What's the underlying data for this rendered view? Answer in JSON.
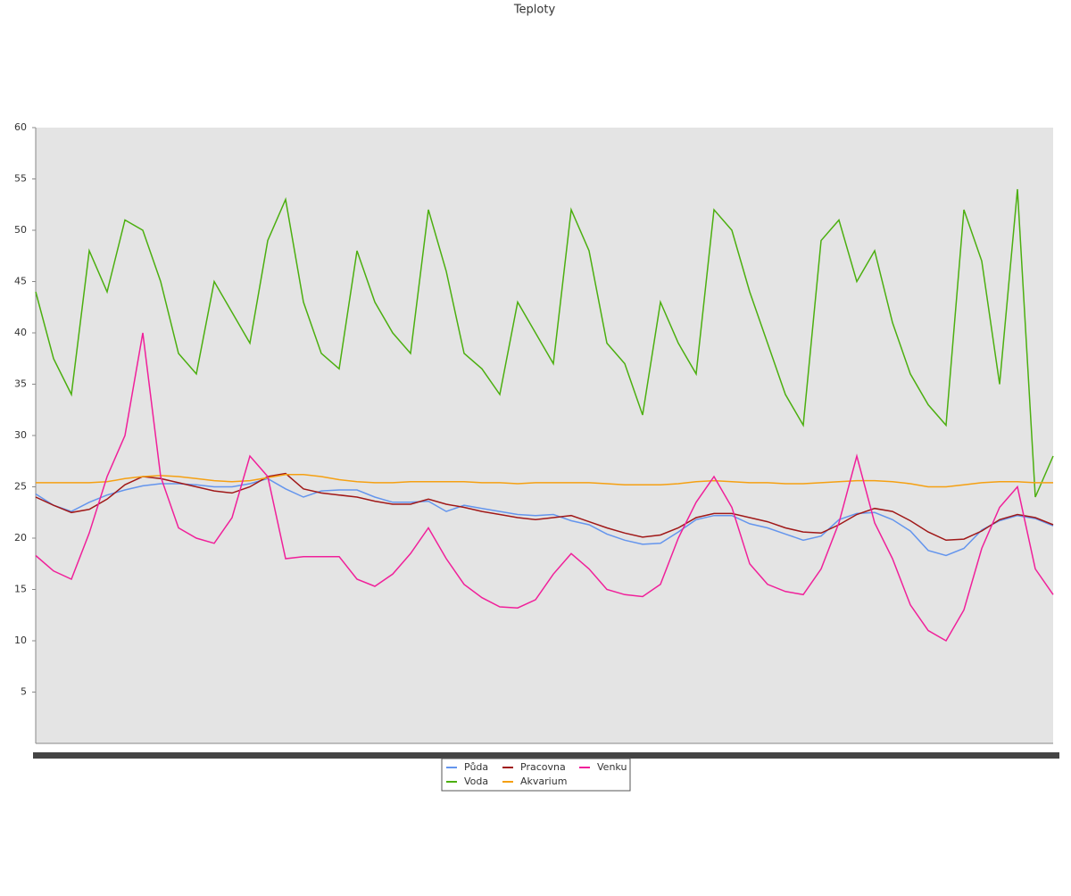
{
  "chart_data": {
    "type": "line",
    "title": "Teploty",
    "ylim": [
      0,
      60
    ],
    "yticks": [
      5,
      10,
      15,
      20,
      25,
      30,
      35,
      40,
      45,
      50,
      55,
      60
    ],
    "grid": false,
    "series": [
      {
        "name": "Půda",
        "color": "#6495ed",
        "values": [
          24.3,
          23.2,
          22.6,
          23.5,
          24.2,
          24.7,
          25.1,
          25.3,
          25.3,
          25.2,
          25.0,
          25.0,
          25.3,
          25.8,
          24.8,
          24.0,
          24.6,
          24.7,
          24.7,
          24.0,
          23.5,
          23.5,
          23.6,
          22.6,
          23.2,
          22.9,
          22.6,
          22.3,
          22.2,
          22.3,
          21.7,
          21.3,
          20.4,
          19.8,
          19.4,
          19.5,
          20.6,
          21.8,
          22.2,
          22.2,
          21.4,
          21.0,
          20.4,
          19.8,
          20.2,
          21.8,
          22.4,
          22.5,
          21.8,
          20.7,
          18.8,
          18.3,
          19.0,
          20.8,
          21.7,
          22.2,
          21.9,
          21.2
        ]
      },
      {
        "name": "Voda",
        "color": "#4caf10",
        "values": [
          44,
          37.5,
          34,
          48,
          44,
          51,
          50,
          45,
          38,
          36,
          45,
          42,
          39,
          49,
          53,
          43,
          38,
          36.5,
          48,
          43,
          40,
          38,
          52,
          46,
          38,
          36.5,
          34,
          43,
          40,
          37,
          52,
          48,
          39,
          37,
          32,
          43,
          39,
          36,
          52,
          50,
          44,
          39,
          34,
          31,
          49,
          51,
          45,
          48,
          41,
          36,
          33,
          31,
          52,
          47,
          35,
          54,
          24,
          28
        ]
      },
      {
        "name": "Pracovna",
        "color": "#a01818",
        "values": [
          24.0,
          23.2,
          22.5,
          22.8,
          23.8,
          25.2,
          26.0,
          25.8,
          25.4,
          25.0,
          24.6,
          24.4,
          25.0,
          26.0,
          26.3,
          24.8,
          24.4,
          24.2,
          24.0,
          23.6,
          23.3,
          23.3,
          23.8,
          23.3,
          23.0,
          22.6,
          22.3,
          22.0,
          21.8,
          22.0,
          22.2,
          21.6,
          21.0,
          20.5,
          20.1,
          20.3,
          21.0,
          22.0,
          22.4,
          22.4,
          22.0,
          21.6,
          21.0,
          20.6,
          20.5,
          21.3,
          22.3,
          22.9,
          22.6,
          21.7,
          20.6,
          19.8,
          19.9,
          20.7,
          21.8,
          22.3,
          22.0,
          21.3
        ]
      },
      {
        "name": "Akvarium",
        "color": "#f5a012",
        "values": [
          25.4,
          25.4,
          25.4,
          25.4,
          25.5,
          25.8,
          26.0,
          26.1,
          26.0,
          25.8,
          25.6,
          25.5,
          25.6,
          25.9,
          26.2,
          26.2,
          26.0,
          25.7,
          25.5,
          25.4,
          25.4,
          25.5,
          25.5,
          25.5,
          25.5,
          25.4,
          25.4,
          25.3,
          25.4,
          25.4,
          25.4,
          25.4,
          25.3,
          25.2,
          25.2,
          25.2,
          25.3,
          25.5,
          25.6,
          25.5,
          25.4,
          25.4,
          25.3,
          25.3,
          25.4,
          25.5,
          25.6,
          25.6,
          25.5,
          25.3,
          25.0,
          25.0,
          25.2,
          25.4,
          25.5,
          25.5,
          25.4,
          25.4
        ]
      },
      {
        "name": "Venku",
        "color": "#f0209a",
        "values": [
          18.3,
          16.8,
          16.0,
          20.5,
          26,
          30,
          40,
          26,
          21,
          20,
          19.5,
          22,
          28,
          26,
          18,
          18.2,
          18.2,
          18.2,
          16,
          15.3,
          16.5,
          18.5,
          21,
          18,
          15.5,
          14.2,
          13.3,
          13.2,
          14,
          16.5,
          18.5,
          17,
          15,
          14.5,
          14.3,
          15.5,
          20,
          23.5,
          26,
          23,
          17.5,
          15.5,
          14.8,
          14.5,
          17,
          21.5,
          28,
          21.5,
          18,
          13.5,
          11,
          10,
          13,
          19,
          23,
          25,
          17,
          14.5
        ]
      }
    ]
  }
}
